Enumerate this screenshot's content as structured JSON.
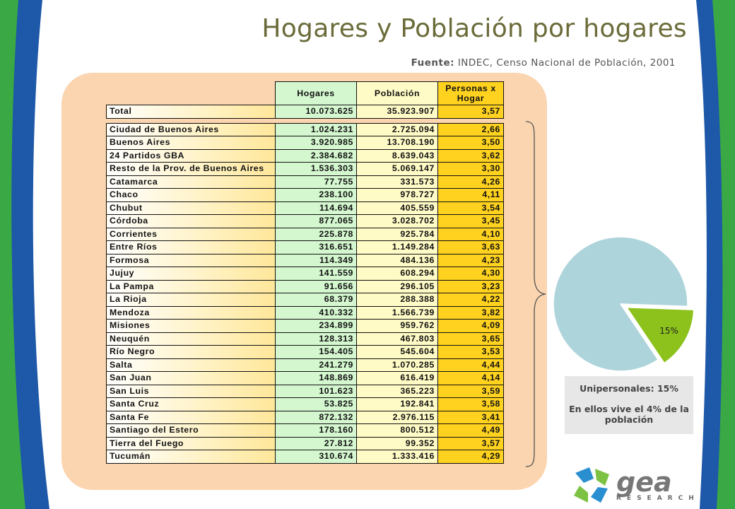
{
  "title": "Hogares y Población por hogares",
  "source": {
    "label": "Fuente:",
    "text": "INDEC, Censo Nacional de Población, 2001"
  },
  "colors": {
    "title": "#6b6b3a",
    "pie_main": "#aed4db",
    "pie_slice": "#8cc21b",
    "panel": "#fbd5b0"
  },
  "chart_data": [
    {
      "type": "table",
      "columns": [
        "Hogares",
        "Población",
        "Personas x Hogar"
      ],
      "total": {
        "name": "Total",
        "hogares": "10.073.625",
        "poblacion": "35.923.907",
        "pxh": "3,57"
      },
      "rows": [
        {
          "name": "Ciudad de Buenos Aires",
          "hogares": "1.024.231",
          "poblacion": "2.725.094",
          "pxh": "2,66"
        },
        {
          "name": "Buenos Aires",
          "hogares": "3.920.985",
          "poblacion": "13.708.190",
          "pxh": "3,50"
        },
        {
          "name": "24 Partidos GBA",
          "hogares": "2.384.682",
          "poblacion": "8.639.043",
          "pxh": "3,62"
        },
        {
          "name": "Resto de la Prov. de Buenos Aires",
          "hogares": "1.536.303",
          "poblacion": "5.069.147",
          "pxh": "3,30"
        },
        {
          "name": "Catamarca",
          "hogares": "77.755",
          "poblacion": "331.573",
          "pxh": "4,26"
        },
        {
          "name": "Chaco",
          "hogares": "238.100",
          "poblacion": "978.727",
          "pxh": "4,11"
        },
        {
          "name": "Chubut",
          "hogares": "114.694",
          "poblacion": "405.559",
          "pxh": "3,54"
        },
        {
          "name": "Córdoba",
          "hogares": "877.065",
          "poblacion": "3.028.702",
          "pxh": "3,45"
        },
        {
          "name": "Corrientes",
          "hogares": "225.878",
          "poblacion": "925.784",
          "pxh": "4,10"
        },
        {
          "name": "Entre Ríos",
          "hogares": "316.651",
          "poblacion": "1.149.284",
          "pxh": "3,63"
        },
        {
          "name": "Formosa",
          "hogares": "114.349",
          "poblacion": "484.136",
          "pxh": "4,23"
        },
        {
          "name": "Jujuy",
          "hogares": "141.559",
          "poblacion": "608.294",
          "pxh": "4,30"
        },
        {
          "name": "La Pampa",
          "hogares": "91.656",
          "poblacion": "296.105",
          "pxh": "3,23"
        },
        {
          "name": "La Rioja",
          "hogares": "68.379",
          "poblacion": "288.388",
          "pxh": "4,22"
        },
        {
          "name": "Mendoza",
          "hogares": "410.332",
          "poblacion": "1.566.739",
          "pxh": "3,82"
        },
        {
          "name": "Misiones",
          "hogares": "234.899",
          "poblacion": "959.762",
          "pxh": "4,09"
        },
        {
          "name": "Neuquén",
          "hogares": "128.313",
          "poblacion": "467.803",
          "pxh": "3,65"
        },
        {
          "name": "Río Negro",
          "hogares": "154.405",
          "poblacion": "545.604",
          "pxh": "3,53"
        },
        {
          "name": "Salta",
          "hogares": "241.279",
          "poblacion": "1.070.285",
          "pxh": "4,44"
        },
        {
          "name": "San Juan",
          "hogares": "148.869",
          "poblacion": "616.419",
          "pxh": "4,14"
        },
        {
          "name": "San Luis",
          "hogares": "101.623",
          "poblacion": "365.223",
          "pxh": "3,59"
        },
        {
          "name": "Santa Cruz",
          "hogares": "53.825",
          "poblacion": "192.841",
          "pxh": "3,58"
        },
        {
          "name": "Santa Fe",
          "hogares": "872.132",
          "poblacion": "2.976.115",
          "pxh": "3,41"
        },
        {
          "name": "Santiago del Estero",
          "hogares": "178.160",
          "poblacion": "800.512",
          "pxh": "4,49"
        },
        {
          "name": "Tierra del Fuego",
          "hogares": "27.812",
          "poblacion": "99.352",
          "pxh": "3,57"
        },
        {
          "name": "Tucumán",
          "hogares": "310.674",
          "poblacion": "1.333.416",
          "pxh": "4,29"
        }
      ]
    },
    {
      "type": "pie",
      "values": [
        85,
        15
      ],
      "slice_label": "15%",
      "caption_line1": "Unipersonales: 15%",
      "caption_line2": "En ellos vive el 4% de la población"
    }
  ],
  "logo": {
    "name": "gea-logo",
    "text": "gea",
    "subtext": "RESEARCH"
  }
}
